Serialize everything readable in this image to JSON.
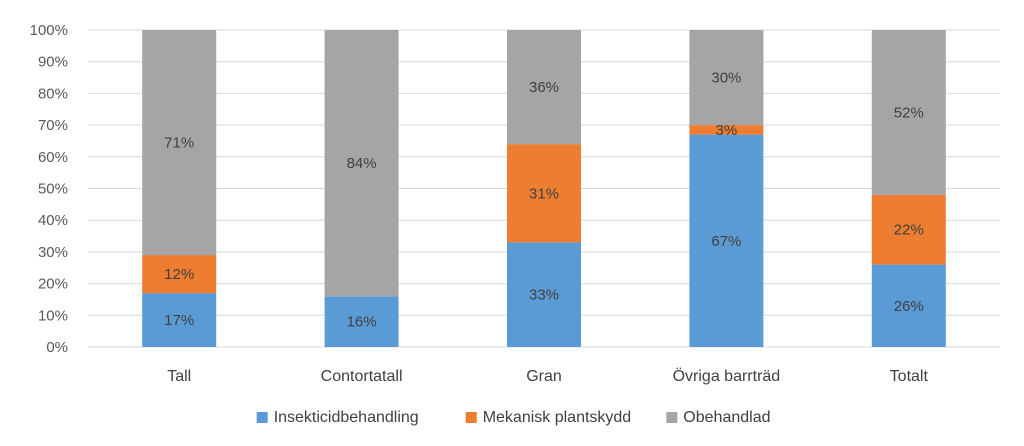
{
  "chart_data": {
    "type": "bar",
    "stacked": true,
    "percent": true,
    "categories": [
      "Tall",
      "Contortatall",
      "Gran",
      "Övriga barrträd",
      "Totalt"
    ],
    "series": [
      {
        "name": "Insekticidbehandling",
        "color": "#5b9bd5",
        "values": [
          17,
          16,
          33,
          67,
          26
        ],
        "labels": [
          "17%",
          "16%",
          "33%",
          "67%",
          "26%"
        ]
      },
      {
        "name": "Mekanisk plantskydd",
        "color": "#ed7d31",
        "values": [
          12,
          0,
          31,
          3,
          22
        ],
        "labels": [
          "12%",
          "",
          "31%",
          "3%",
          "22%"
        ]
      },
      {
        "name": "Obehandlad",
        "color": "#a5a5a5",
        "values": [
          71,
          84,
          36,
          30,
          52
        ],
        "labels": [
          "71%",
          "84%",
          "36%",
          "30%",
          "52%"
        ]
      }
    ],
    "ylim": [
      0,
      100
    ],
    "yticks": [
      "0%",
      "10%",
      "20%",
      "30%",
      "40%",
      "50%",
      "60%",
      "70%",
      "80%",
      "90%",
      "100%"
    ],
    "grid": true,
    "legend_position": "bottom",
    "title": "",
    "xlabel": "",
    "ylabel": ""
  }
}
